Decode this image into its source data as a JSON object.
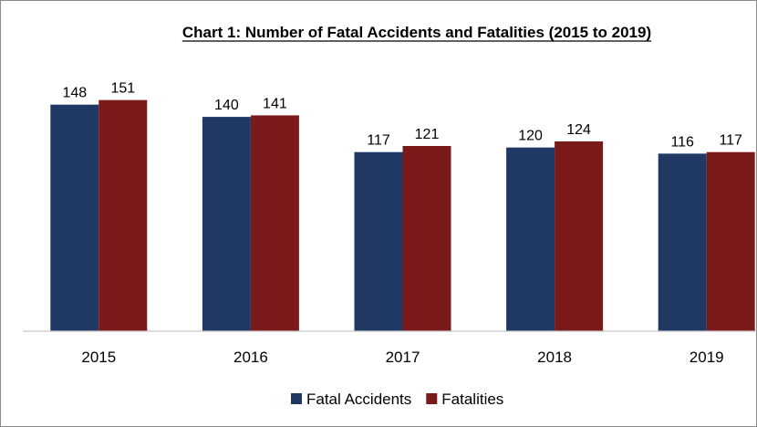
{
  "chart_data": {
    "type": "bar",
    "title": "Chart 1: Number of Fatal Accidents and Fatalities (2015 to 2019)",
    "categories": [
      "2015",
      "2016",
      "2017",
      "2018",
      "2019"
    ],
    "series": [
      {
        "name": "Fatal Accidents",
        "values": [
          148,
          140,
          117,
          120,
          116
        ],
        "color": "#1f3864"
      },
      {
        "name": "Fatalities",
        "values": [
          151,
          141,
          121,
          124,
          117
        ],
        "color": "#7b1a1a"
      }
    ],
    "xlabel": "",
    "ylabel": "",
    "ylim": [
      0,
      180
    ],
    "grid": false,
    "legend": "bottom",
    "data_labels": true
  }
}
